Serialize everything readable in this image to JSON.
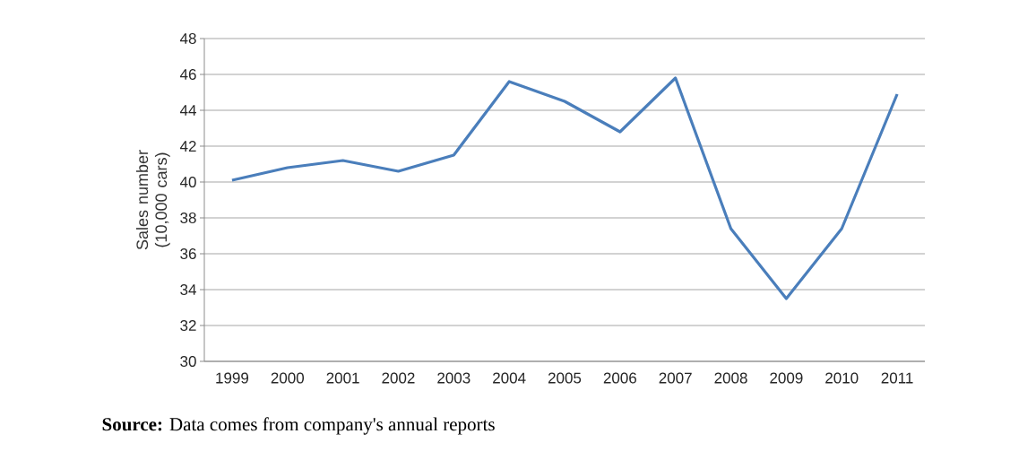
{
  "chart_data": {
    "type": "line",
    "ylabel": "Sales number (10,000 cars)",
    "categories": [
      "1999",
      "2000",
      "2001",
      "2002",
      "2003",
      "2004",
      "2005",
      "2006",
      "2007",
      "2008",
      "2009",
      "2010",
      "2011"
    ],
    "values": [
      40.1,
      40.8,
      41.2,
      40.6,
      41.5,
      45.6,
      44.5,
      42.8,
      45.8,
      37.4,
      33.5,
      37.4,
      44.9
    ],
    "color": "#4a7ebb",
    "ylim": [
      30,
      48
    ],
    "yticks": [
      30,
      32,
      34,
      36,
      38,
      40,
      42,
      44,
      46,
      48
    ],
    "grid": "y",
    "annotations": [
      "**Source:** Data comes from company's annual reports"
    ]
  }
}
